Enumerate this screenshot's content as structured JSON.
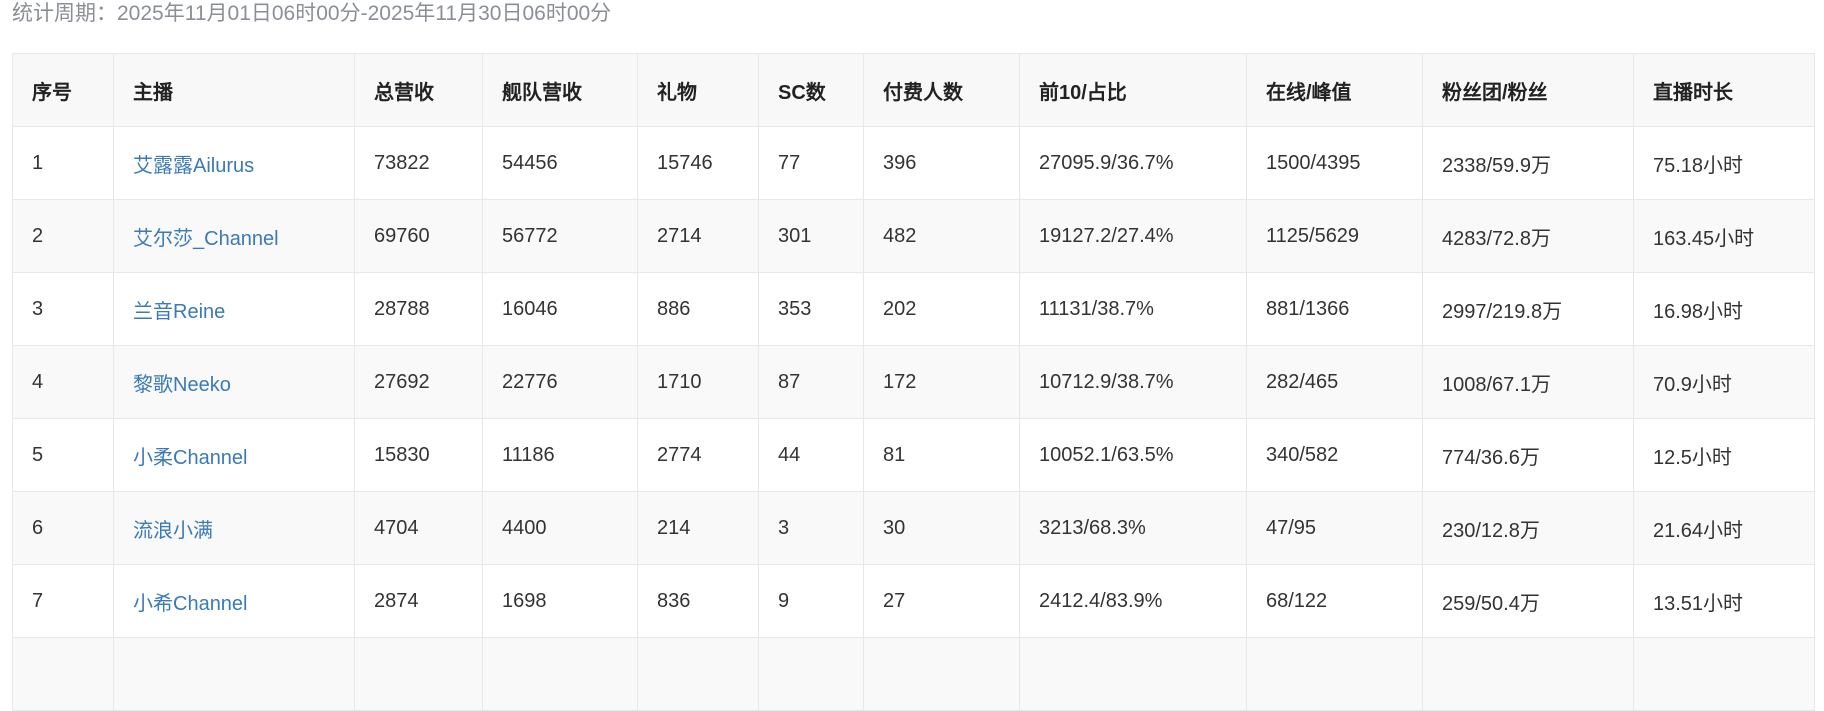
{
  "period": "统计周期：2025年11月01日06时00分-2025年11月30日06时00分",
  "colors": {
    "link": "#3a7ab8",
    "header_bg": "#f8f8f9",
    "stripe_bg": "#f9f9f9"
  },
  "table": {
    "headers": [
      "序号",
      "主播",
      "总营收",
      "舰队营收",
      "礼物",
      "SC数",
      "付费人数",
      "前10/占比",
      "在线/峰值",
      "粉丝团/粉丝",
      "直播时长"
    ],
    "rows": [
      [
        "1",
        "艾露露Ailurus",
        "73822",
        "54456",
        "15746",
        "77",
        "396",
        "27095.9/36.7%",
        "1500/4395",
        "2338/59.9万",
        "75.18小时"
      ],
      [
        "2",
        "艾尔莎_Channel",
        "69760",
        "56772",
        "2714",
        "301",
        "482",
        "19127.2/27.4%",
        "1125/5629",
        "4283/72.8万",
        "163.45小时"
      ],
      [
        "3",
        "兰音Reine",
        "28788",
        "16046",
        "886",
        "353",
        "202",
        "11131/38.7%",
        "881/1366",
        "2997/219.8万",
        "16.98小时"
      ],
      [
        "4",
        "黎歌Neeko",
        "27692",
        "22776",
        "1710",
        "87",
        "172",
        "10712.9/38.7%",
        "282/465",
        "1008/67.1万",
        "70.9小时"
      ],
      [
        "5",
        "小柔Channel",
        "15830",
        "11186",
        "2774",
        "44",
        "81",
        "10052.1/63.5%",
        "340/582",
        "774/36.6万",
        "12.5小时"
      ],
      [
        "6",
        "流浪小满",
        "4704",
        "4400",
        "214",
        "3",
        "30",
        "3213/68.3%",
        "47/95",
        "230/12.8万",
        "21.64小时"
      ],
      [
        "7",
        "小希Channel",
        "2874",
        "1698",
        "836",
        "9",
        "27",
        "2412.4/83.9%",
        "68/122",
        "259/50.4万",
        "13.51小时"
      ]
    ]
  }
}
